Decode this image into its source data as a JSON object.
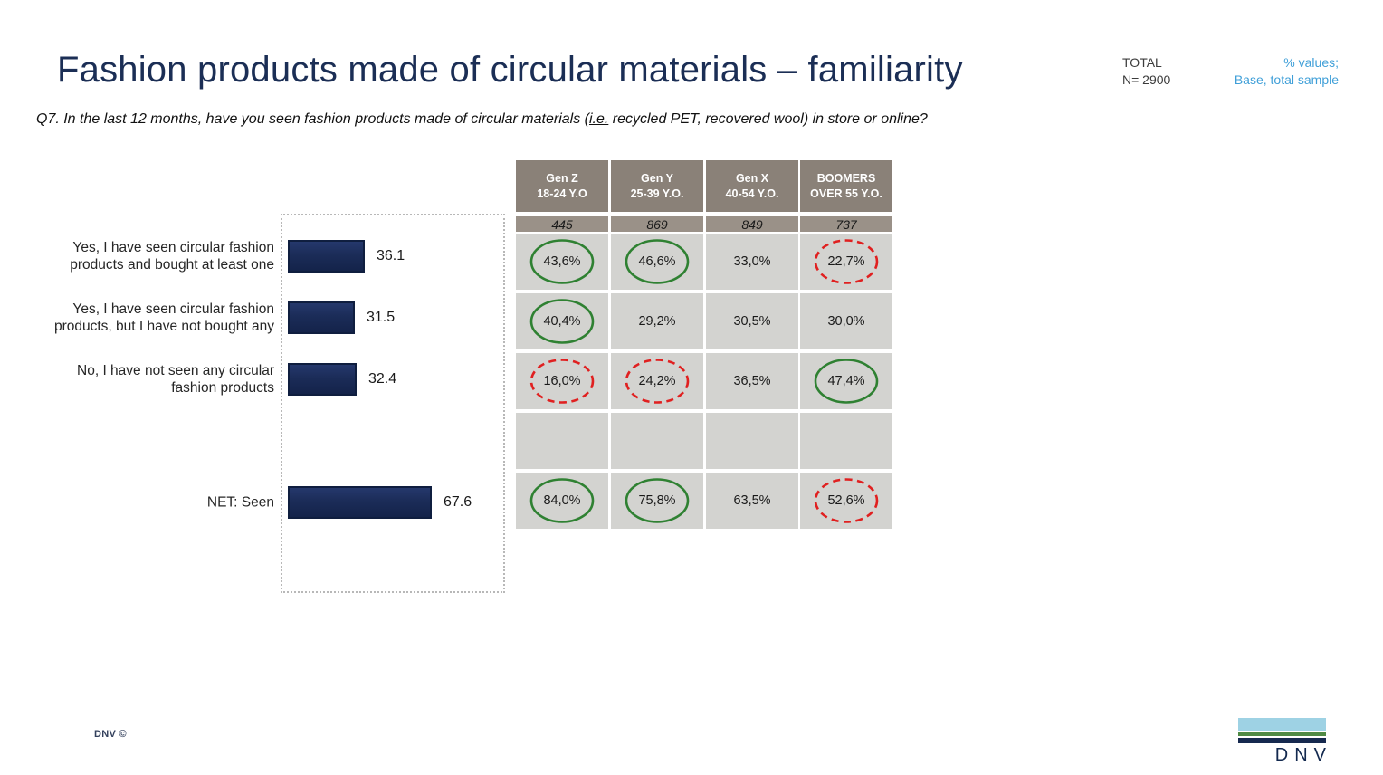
{
  "title": "Fashion products made of circular materials – familiarity",
  "meta": {
    "total_label": "TOTAL",
    "n_label": "N= 2900"
  },
  "note": {
    "line1": "% values;",
    "line2": "Base, total sample"
  },
  "question": {
    "part1": "Q7. In the last 12 months, have you seen fashion products made of circular materials (",
    "ie": "i.e.",
    "part2": " recycled PET, recovered wool) in store or online?"
  },
  "colors": {
    "bar_navy": "#1b2c58",
    "title_navy": "#1b2e55",
    "note_blue": "#3f9fd8",
    "header_taupe": "#8a8178",
    "base_taupe": "#9a9188",
    "cell_gray": "#d3d3d0",
    "green_circle": "#2f8132",
    "red_circle": "#e02020",
    "logo_light_blue": "#9ed2e4",
    "logo_green": "#4f8a45",
    "logo_navy": "#16294f"
  },
  "chart_data": [
    {
      "type": "bar",
      "orientation": "horizontal",
      "title": "",
      "xlabel": "",
      "ylabel": "",
      "xlim": [
        0,
        100
      ],
      "grid": false,
      "bar_color": "#1b2c58",
      "categories": [
        "Yes, I have seen circular fashion products and bought at least one",
        "Yes, I have seen circular fashion products, but I have not bought any",
        "No, I have not seen any circular fashion products",
        "NET: Seen"
      ],
      "values": [
        36.1,
        31.5,
        32.4,
        67.6
      ],
      "value_labels": [
        "36.1",
        "31.5",
        "32.4",
        "67.6"
      ]
    },
    {
      "type": "table",
      "columns": [
        "Gen Z\n18-24 Y.O",
        "Gen Y\n25-39 Y.O.",
        "Gen X\n40-54 Y.O.",
        "BOOMERS\nOVER 55 Y.O."
      ],
      "base_n": [
        "445",
        "869",
        "849",
        "737"
      ],
      "rows": [
        {
          "values": [
            "43,6%",
            "46,6%",
            "33,0%",
            "22,7%"
          ],
          "marks": [
            "green",
            "green",
            "none",
            "red"
          ]
        },
        {
          "values": [
            "40,4%",
            "29,2%",
            "30,5%",
            "30,0%"
          ],
          "marks": [
            "green",
            "none",
            "none",
            "none"
          ]
        },
        {
          "values": [
            "16,0%",
            "24,2%",
            "36,5%",
            "47,4%"
          ],
          "marks": [
            "red",
            "red",
            "none",
            "green"
          ]
        },
        {
          "values": [
            "",
            "",
            "",
            ""
          ],
          "marks": [
            "none",
            "none",
            "none",
            "none"
          ]
        },
        {
          "values": [
            "84,0%",
            "75,8%",
            "63,5%",
            "52,6%"
          ],
          "marks": [
            "green",
            "green",
            "none",
            "red"
          ]
        }
      ]
    }
  ],
  "footer": {
    "copyright": "DNV ©",
    "logo_text": "DNV"
  }
}
